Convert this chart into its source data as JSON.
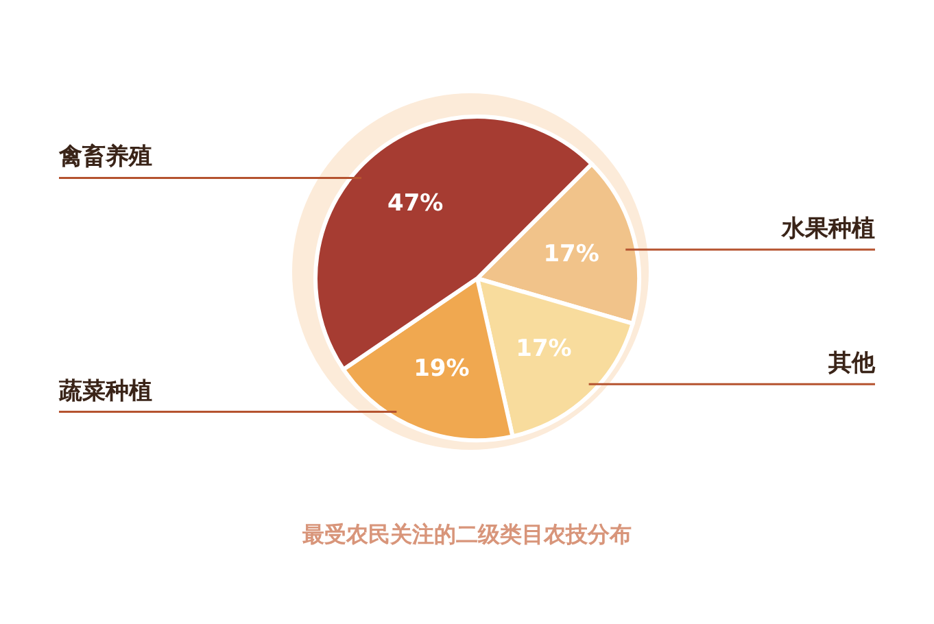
{
  "chart_data": {
    "type": "pie",
    "title": "最受农民关注的二级类目农技分布",
    "categories": [
      "水果种植",
      "其他",
      "蔬菜种植",
      "禽畜养殖"
    ],
    "values": [
      17,
      17,
      19,
      47
    ],
    "colors": [
      "#f1c38a",
      "#f8dc9d",
      "#f0a850",
      "#a63c32"
    ],
    "value_labels": [
      "17%",
      "17%",
      "19%",
      "47%"
    ]
  }
}
